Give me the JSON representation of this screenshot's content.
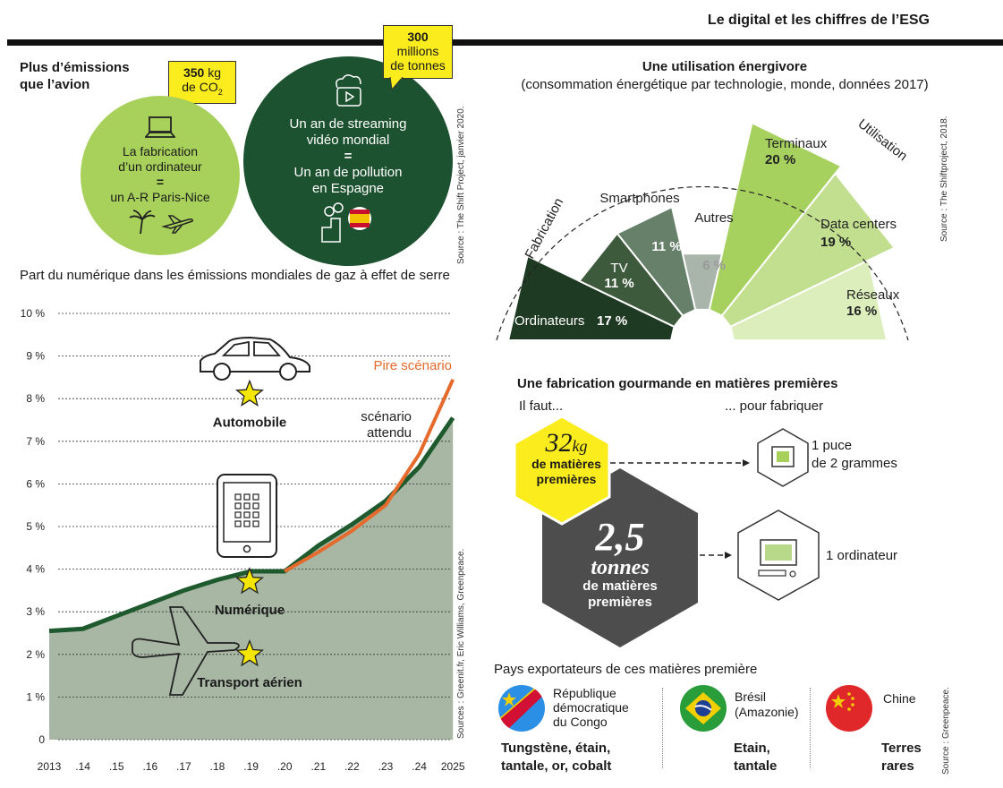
{
  "header": {
    "title": "Le digital et les chiffres de l’ESG"
  },
  "streaming": {
    "left_title": [
      "Plus d’émissions",
      "que l’avion"
    ],
    "badge_left": {
      "value": "350",
      "unit": "kg",
      "line2": "de CO",
      "sub": "2"
    },
    "left_circle": [
      "La fabrication",
      "d’un ordinateur",
      "=",
      "un A-R Paris-Nice"
    ],
    "badge_right": [
      "300",
      "millions",
      "de tonnes"
    ],
    "right_circle": [
      "Un an de streaming",
      "vidéo mondial",
      "=",
      "Un an de pollution",
      "en Espagne"
    ],
    "source": "Source : The Shift Project, janvier 2020."
  },
  "energy": {
    "title": "Une utilisation énergivore",
    "subtitle": "(consommation énergétique par technologie, monde, données 2017)",
    "label_fabrication": "Fabrication",
    "label_utilisation": "Utilisation",
    "source": "Source : The Shiftproject, 2018."
  },
  "materials": {
    "title": "Une fabrication gourmande en matières premières",
    "left_head": "Il faut...",
    "right_head": "... pour fabriquer",
    "small_value": "32",
    "small_unit": "kg",
    "small_text": [
      "de matières",
      "premières"
    ],
    "big_value": "2,5",
    "big_unit": "tonnes",
    "big_text": [
      "de matières",
      "premières"
    ],
    "chip_text": [
      "1 puce",
      "de 2 grammes"
    ],
    "computer_text": "1 ordinateur"
  },
  "countries": {
    "title": "Pays exportateurs de ces matières première",
    "items": [
      {
        "name": [
          "République",
          "démocratique",
          "du Congo"
        ],
        "materials": [
          "Tungstène, étain,",
          "tantale, or, cobalt"
        ]
      },
      {
        "name": [
          "Brésil",
          "(Amazonie)"
        ],
        "materials": [
          "Etain,",
          "tantale"
        ]
      },
      {
        "name": [
          "Chine"
        ],
        "materials": [
          "Terres",
          "rares"
        ]
      }
    ],
    "source": "Source : Greenpeace."
  },
  "line_chart_source": "Sources : Greenit.fr, Eric Williams, Greenpeace.",
  "chart_data": [
    {
      "type": "pie",
      "categories": [
        "Ordinateurs",
        "TV",
        "Smartphones",
        "Autres",
        "Terminaux",
        "Data centers",
        "Réseaux"
      ],
      "values": [
        17,
        11,
        11,
        6,
        20,
        19,
        16
      ],
      "value_labels": [
        "17 %",
        "11 %",
        "11 %",
        "6 %",
        "20 %",
        "19 %",
        "16 %"
      ],
      "colors": [
        "#1f3a23",
        "#3e5a3d",
        "#66806a",
        "#a9b5ab",
        "#a7d15f",
        "#c2df90",
        "#dbeebb"
      ],
      "groups": [
        {
          "name": "Fabrication",
          "members": [
            "Ordinateurs",
            "TV",
            "Smartphones",
            "Autres"
          ]
        },
        {
          "name": "Utilisation",
          "members": [
            "Terminaux",
            "Data centers",
            "Réseaux"
          ]
        }
      ]
    },
    {
      "type": "area",
      "title": "Part du numérique dans les émissions mondiales de gaz à effet de serre",
      "x": [
        "2013",
        ".14",
        ".15",
        ".16",
        ".17",
        ".18",
        ".19",
        ".20",
        ".21",
        ".22",
        ".23",
        ".24",
        "2025"
      ],
      "y_ticks": [
        "10 %",
        "9 %",
        "8 %",
        "7 %",
        "6 %",
        "5 %",
        "4 %",
        "3 %",
        "2 %",
        "1 %",
        "0"
      ],
      "ylim": [
        0,
        10
      ],
      "series": [
        {
          "name": "scénario attendu",
          "color": "#1f5a2e",
          "values": [
            2.55,
            2.6,
            2.9,
            3.2,
            3.5,
            3.75,
            3.95,
            3.95,
            4.55,
            5.05,
            5.6,
            6.4,
            7.55
          ]
        },
        {
          "name": "Pire scénario",
          "color": "#e56a2c",
          "values": [
            null,
            null,
            null,
            null,
            null,
            null,
            null,
            3.95,
            4.4,
            4.9,
            5.5,
            6.7,
            8.45
          ]
        }
      ],
      "annotations": [
        {
          "label": "Automobile",
          "y": 8.1
        },
        {
          "label": "Numérique",
          "y": 3.7
        },
        {
          "label": "Transport aérien",
          "y": 2.0
        }
      ]
    }
  ]
}
